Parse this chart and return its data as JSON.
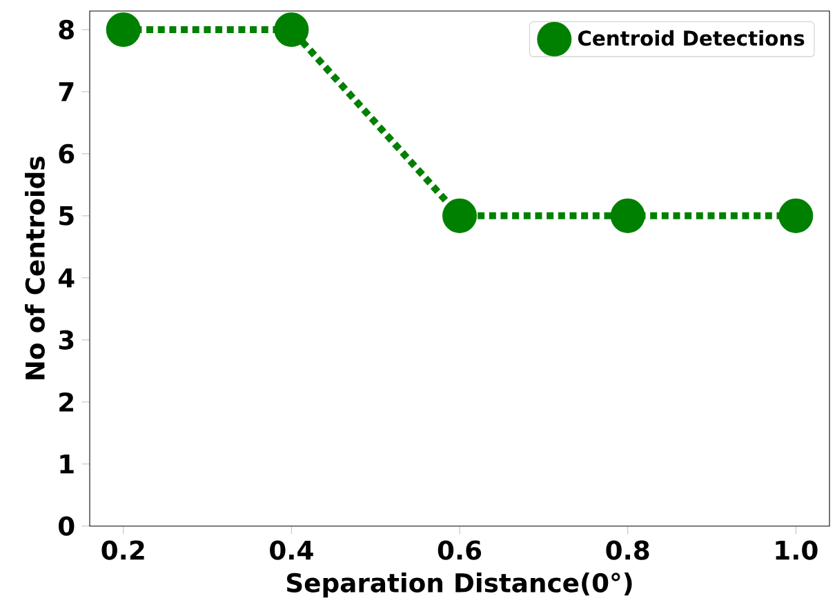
{
  "chart_data": {
    "type": "line",
    "xlabel": "Separation Distance(0°)",
    "ylabel": "No of Centroids",
    "x": [
      0.2,
      0.4,
      0.6,
      0.8,
      1.0
    ],
    "series": [
      {
        "name": "Centroid Detections",
        "color": "#008000",
        "values": [
          8,
          8,
          5,
          5,
          5
        ]
      }
    ],
    "xlim": [
      0.16,
      1.04
    ],
    "ylim": [
      0,
      8.3
    ],
    "xticks": [
      0.2,
      0.4,
      0.6,
      0.8,
      {
        "value": 1.0,
        "label": "1.0"
      }
    ],
    "yticks": [
      0,
      1,
      2,
      3,
      4,
      5,
      6,
      7,
      8
    ],
    "marker": "circle",
    "line_style": "dotted",
    "legend": "top right",
    "grid": false
  }
}
